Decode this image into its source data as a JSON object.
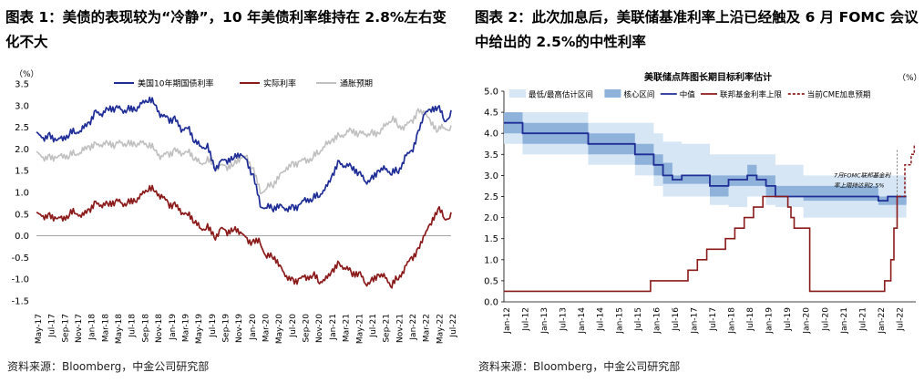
{
  "figure1": {
    "title": "图表 1：美债的表现较为“冷静”，10 年美债利率维持在 2.8%左右变化不大",
    "source": "资料来源：Bloomberg，中金公司研究部"
  },
  "figure2": {
    "title": "图表 2：此次加息后，美联储基准利率上沿已经触及 6 月 FOMC 会议中给出的 2.5%的中性利率",
    "source": "资料来源：Bloomberg，中金公司研究部"
  },
  "chart_data": [
    {
      "type": "line",
      "unit_label": "（%）",
      "ylim": [
        -1.5,
        3.5
      ],
      "yticks": [
        "-1.5",
        "-1.0",
        "-0.5",
        "0.0",
        "0.5",
        "1.0",
        "1.5",
        "2.0",
        "2.5",
        "3.0",
        "3.5"
      ],
      "xticks": [
        "May-17",
        "Jul-17",
        "Sep-17",
        "Nov-17",
        "Jan-18",
        "Mar-18",
        "May-18",
        "Jul-18",
        "Sep-18",
        "Nov-18",
        "Jan-19",
        "Mar-19",
        "May-19",
        "Jul-19",
        "Sep-19",
        "Nov-19",
        "Jan-20",
        "Mar-20",
        "May-20",
        "Jul-20",
        "Sep-20",
        "Nov-20",
        "Jan-21",
        "Mar-21",
        "May-21",
        "Jul-21",
        "Sep-21",
        "Nov-21",
        "Jan-22",
        "Mar-22",
        "May-22",
        "Jul-22"
      ],
      "x_months": [
        "2017-05",
        "2017-06",
        "2017-07",
        "2017-08",
        "2017-09",
        "2017-10",
        "2017-11",
        "2017-12",
        "2018-01",
        "2018-02",
        "2018-03",
        "2018-04",
        "2018-05",
        "2018-06",
        "2018-07",
        "2018-08",
        "2018-09",
        "2018-10",
        "2018-11",
        "2018-12",
        "2019-01",
        "2019-02",
        "2019-03",
        "2019-04",
        "2019-05",
        "2019-06",
        "2019-07",
        "2019-08",
        "2019-09",
        "2019-10",
        "2019-11",
        "2019-12",
        "2020-01",
        "2020-02",
        "2020-03",
        "2020-04",
        "2020-05",
        "2020-06",
        "2020-07",
        "2020-08",
        "2020-09",
        "2020-10",
        "2020-11",
        "2020-12",
        "2021-01",
        "2021-02",
        "2021-03",
        "2021-04",
        "2021-05",
        "2021-06",
        "2021-07",
        "2021-08",
        "2021-09",
        "2021-10",
        "2021-11",
        "2021-12",
        "2022-01",
        "2022-02",
        "2022-03",
        "2022-04",
        "2022-05",
        "2022-06",
        "2022-07",
        "2022-08"
      ],
      "grid": false,
      "legend_position": "top",
      "series": [
        {
          "name": "美国10年期国债利率",
          "color": "#1f2d96",
          "values": [
            2.35,
            2.25,
            2.3,
            2.2,
            2.25,
            2.35,
            2.4,
            2.45,
            2.6,
            2.85,
            2.8,
            2.95,
            2.95,
            2.9,
            2.9,
            2.9,
            3.05,
            3.15,
            3.05,
            2.75,
            2.7,
            2.68,
            2.45,
            2.5,
            2.2,
            2.05,
            2.05,
            1.55,
            1.7,
            1.75,
            1.8,
            1.9,
            1.7,
            1.35,
            0.7,
            0.65,
            0.65,
            0.7,
            0.6,
            0.65,
            0.7,
            0.85,
            0.85,
            0.95,
            1.1,
            1.4,
            1.7,
            1.6,
            1.6,
            1.45,
            1.25,
            1.3,
            1.5,
            1.55,
            1.45,
            1.5,
            1.8,
            1.95,
            2.35,
            2.85,
            2.9,
            3.0,
            2.65,
            2.8
          ]
        },
        {
          "name": "实际利率",
          "color": "#8b1a1a",
          "values": [
            0.5,
            0.45,
            0.45,
            0.4,
            0.4,
            0.5,
            0.55,
            0.45,
            0.6,
            0.75,
            0.7,
            0.75,
            0.8,
            0.75,
            0.75,
            0.8,
            0.95,
            1.1,
            1.05,
            0.9,
            0.75,
            0.7,
            0.55,
            0.5,
            0.35,
            0.15,
            0.2,
            -0.05,
            0.15,
            0.1,
            0.15,
            0.1,
            -0.1,
            -0.15,
            -0.15,
            -0.5,
            -0.45,
            -0.7,
            -0.95,
            -1.05,
            -1.0,
            -0.95,
            -0.9,
            -1.05,
            -1.0,
            -0.8,
            -0.65,
            -0.75,
            -0.85,
            -0.85,
            -1.1,
            -1.05,
            -0.9,
            -0.95,
            -1.15,
            -0.95,
            -0.75,
            -0.5,
            -0.35,
            0.05,
            0.3,
            0.65,
            0.4,
            0.45
          ]
        },
        {
          "name": "通胀预期",
          "color": "#c0c0c0",
          "values": [
            1.9,
            1.8,
            1.8,
            1.8,
            1.85,
            1.85,
            1.9,
            1.95,
            2.05,
            2.1,
            2.1,
            2.15,
            2.1,
            2.15,
            2.1,
            2.1,
            2.15,
            2.1,
            2.0,
            1.8,
            1.9,
            1.95,
            1.9,
            1.95,
            1.8,
            1.65,
            1.75,
            1.6,
            1.6,
            1.6,
            1.65,
            1.8,
            1.8,
            1.5,
            1.0,
            1.1,
            1.2,
            1.4,
            1.55,
            1.65,
            1.7,
            1.75,
            1.8,
            1.95,
            2.1,
            2.2,
            2.3,
            2.35,
            2.45,
            2.35,
            2.35,
            2.35,
            2.35,
            2.55,
            2.7,
            2.55,
            2.5,
            2.65,
            2.85,
            2.85,
            2.6,
            2.45,
            2.5,
            2.45
          ]
        }
      ]
    },
    {
      "type": "line",
      "title": "美联储点阵图长期目标利率估计",
      "unit_label": "（%）",
      "ylim": [
        0,
        5.0
      ],
      "yticks": [
        "0.0",
        "0.5",
        "1.0",
        "1.5",
        "2.0",
        "2.5",
        "3.0",
        "3.5",
        "4.0",
        "4.5",
        "5.0"
      ],
      "xticks": [
        "Jan-12",
        "Jul-12",
        "Jan-13",
        "Jul-13",
        "Jan-14",
        "Jul-14",
        "Jan-15",
        "Jul-15",
        "Jan-16",
        "Jul-16",
        "Jan-17",
        "Jul-17",
        "Jan-18",
        "Jul-18",
        "Jan-19",
        "Jul-19",
        "Jan-20",
        "Jul-20",
        "Jan-21",
        "Jul-21",
        "Jan-22",
        "Jul-22"
      ],
      "grid": false,
      "legend_position": "top",
      "annotation": [
        "7月FOMC联邦基金利",
        "率上限持达到2.5%"
      ],
      "legend": [
        {
          "name": "最低/最高估计区间",
          "color": "#d6e6f5",
          "kind": "band"
        },
        {
          "name": "核心区间",
          "color": "#8fb2db",
          "kind": "band"
        },
        {
          "name": "中值",
          "color": "#1f2d96",
          "kind": "line"
        },
        {
          "name": "联邦基金利率上限",
          "color": "#8b1a1a",
          "kind": "line"
        },
        {
          "name": "当前CME加息预期",
          "color": "#8b1a1a",
          "kind": "dashed"
        }
      ],
      "dot_plot_quarters": [
        "2012Q1",
        "2012Q2",
        "2012Q3",
        "2012Q4",
        "2013Q1",
        "2013Q2",
        "2013Q3",
        "2013Q4",
        "2014Q1",
        "2014Q2",
        "2014Q3",
        "2014Q4",
        "2015Q1",
        "2015Q2",
        "2015Q3",
        "2015Q4",
        "2016Q1",
        "2016Q2",
        "2016Q3",
        "2016Q4",
        "2017Q1",
        "2017Q2",
        "2017Q3",
        "2017Q4",
        "2018Q1",
        "2018Q2",
        "2018Q3",
        "2018Q4",
        "2019Q1",
        "2019Q2",
        "2019Q3",
        "2019Q4",
        "2020Q1",
        "2020Q2",
        "2020Q3",
        "2020Q4",
        "2021Q1",
        "2021Q2",
        "2021Q3",
        "2021Q4",
        "2022Q1",
        "2022Q2",
        "2022Q3"
      ],
      "median": [
        4.25,
        4.25,
        4.0,
        4.0,
        4.0,
        4.0,
        4.0,
        4.0,
        4.0,
        3.75,
        3.75,
        3.75,
        3.75,
        3.75,
        3.5,
        3.5,
        3.25,
        3.0,
        2.9,
        3.0,
        3.0,
        3.0,
        2.75,
        2.75,
        2.9,
        2.9,
        3.0,
        2.9,
        2.75,
        2.5,
        2.5,
        2.5,
        2.5,
        2.5,
        2.5,
        2.5,
        2.5,
        2.5,
        2.5,
        2.5,
        2.4,
        2.5,
        2.5
      ],
      "core_low": [
        4.0,
        4.0,
        3.75,
        3.75,
        3.75,
        3.75,
        3.75,
        3.75,
        3.75,
        3.5,
        3.5,
        3.5,
        3.5,
        3.5,
        3.25,
        3.25,
        3.0,
        2.8,
        2.8,
        2.8,
        2.8,
        2.8,
        2.5,
        2.5,
        2.75,
        2.75,
        2.75,
        2.75,
        2.5,
        2.5,
        2.5,
        2.5,
        2.4,
        2.4,
        2.4,
        2.4,
        2.4,
        2.4,
        2.4,
        2.4,
        2.3,
        2.3,
        2.3
      ],
      "core_high": [
        4.5,
        4.5,
        4.25,
        4.25,
        4.25,
        4.25,
        4.25,
        4.25,
        4.25,
        4.0,
        4.0,
        4.0,
        4.0,
        4.0,
        3.75,
        3.75,
        3.5,
        3.3,
        3.0,
        3.0,
        3.0,
        3.0,
        3.0,
        3.0,
        3.0,
        3.0,
        3.25,
        3.0,
        3.0,
        2.75,
        2.75,
        2.75,
        2.75,
        2.75,
        2.75,
        2.75,
        2.75,
        2.75,
        2.75,
        2.75,
        2.5,
        2.5,
        2.5
      ],
      "range_low": [
        3.75,
        3.75,
        3.5,
        3.5,
        3.5,
        3.5,
        3.5,
        3.5,
        3.5,
        3.25,
        3.25,
        3.25,
        3.25,
        3.25,
        3.0,
        3.0,
        2.75,
        2.5,
        2.5,
        2.5,
        2.5,
        2.5,
        2.3,
        2.3,
        2.25,
        2.25,
        2.5,
        2.5,
        2.3,
        2.25,
        2.25,
        2.25,
        2.0,
        2.0,
        2.0,
        2.0,
        2.0,
        2.0,
        2.0,
        2.0,
        2.0,
        2.0,
        2.0
      ],
      "range_high": [
        4.5,
        4.5,
        4.5,
        4.5,
        4.5,
        4.5,
        4.5,
        4.5,
        4.5,
        4.25,
        4.25,
        4.25,
        4.25,
        4.25,
        4.25,
        4.25,
        4.0,
        3.8,
        3.8,
        3.75,
        3.75,
        3.75,
        3.5,
        3.5,
        3.5,
        3.5,
        3.5,
        3.5,
        3.5,
        3.25,
        3.25,
        3.25,
        3.0,
        3.0,
        3.0,
        3.0,
        3.0,
        3.0,
        3.0,
        3.0,
        3.0,
        3.0,
        3.0
      ],
      "fed_funds_upper_steps": [
        [
          "2012-01",
          0.25
        ],
        [
          "2015-12",
          0.5
        ],
        [
          "2016-12",
          0.75
        ],
        [
          "2017-03",
          1.0
        ],
        [
          "2017-06",
          1.25
        ],
        [
          "2017-12",
          1.5
        ],
        [
          "2018-03",
          1.75
        ],
        [
          "2018-06",
          2.0
        ],
        [
          "2018-09",
          2.25
        ],
        [
          "2018-12",
          2.5
        ],
        [
          "2019-08",
          2.25
        ],
        [
          "2019-09",
          2.0
        ],
        [
          "2019-10",
          1.75
        ],
        [
          "2020-03",
          0.25
        ],
        [
          "2022-03",
          0.5
        ],
        [
          "2022-05",
          1.0
        ],
        [
          "2022-06",
          1.75
        ],
        [
          "2022-07",
          2.5
        ]
      ],
      "cme_expectation_steps": [
        [
          "2022-07",
          2.5
        ],
        [
          "2022-09",
          3.25
        ],
        [
          "2022-11",
          3.5
        ],
        [
          "2022-12",
          3.75
        ]
      ]
    }
  ]
}
